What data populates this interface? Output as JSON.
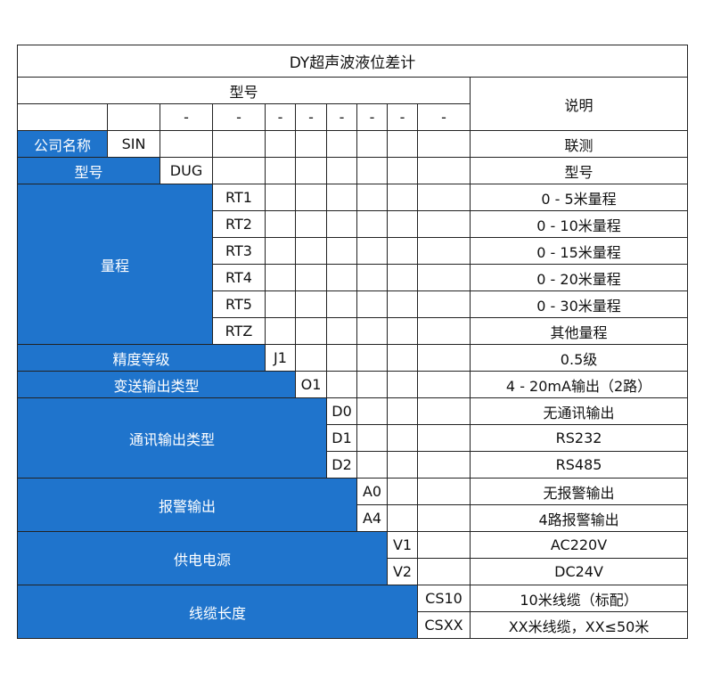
{
  "title": "DY超声波液位差计",
  "header": {
    "model_label": "型号",
    "desc_label": "说明",
    "dashes": [
      "",
      "",
      "-",
      "-",
      "-",
      "-",
      "-",
      "-",
      "-",
      "-"
    ]
  },
  "colors": {
    "label_bg": "#1f74cc",
    "label_text": "#ffffff",
    "border": "#222222"
  },
  "groups": [
    {
      "label": "公司名称",
      "span": 1,
      "rows": [
        {
          "code": "SIN",
          "desc": "联测"
        }
      ]
    },
    {
      "label": "型号",
      "span": 2,
      "rows": [
        {
          "code": "DUG",
          "desc": "型号"
        }
      ]
    },
    {
      "label": "量程",
      "span": 3,
      "rows": [
        {
          "code": "RT1",
          "desc": "0 - 5米量程"
        },
        {
          "code": "RT2",
          "desc": "0 - 10米量程"
        },
        {
          "code": "RT3",
          "desc": "0 - 15米量程"
        },
        {
          "code": "RT4",
          "desc": "0 - 20米量程"
        },
        {
          "code": "RT5",
          "desc": "0 - 30米量程"
        },
        {
          "code": "RTZ",
          "desc": "其他量程"
        }
      ]
    },
    {
      "label": "精度等级",
      "span": 4,
      "rows": [
        {
          "code": "J1",
          "desc": "0.5级"
        }
      ]
    },
    {
      "label": "变送输出类型",
      "span": 5,
      "rows": [
        {
          "code": "O1",
          "desc": "4 - 20mA输出（2路）"
        }
      ]
    },
    {
      "label": "通讯输出类型",
      "span": 6,
      "rows": [
        {
          "code": "D0",
          "desc": "无通讯输出"
        },
        {
          "code": "D1",
          "desc": "RS232"
        },
        {
          "code": "D2",
          "desc": "RS485"
        }
      ]
    },
    {
      "label": "报警输出",
      "span": 7,
      "rows": [
        {
          "code": "A0",
          "desc": "无报警输出"
        },
        {
          "code": "A4",
          "desc": "4路报警输出"
        }
      ]
    },
    {
      "label": "供电电源",
      "span": 8,
      "rows": [
        {
          "code": "V1",
          "desc": "AC220V"
        },
        {
          "code": "V2",
          "desc": "DC24V"
        }
      ]
    },
    {
      "label": "线缆长度",
      "span": 9,
      "rows": [
        {
          "code": "CS10",
          "desc": "10米线缆（标配）"
        },
        {
          "code": "CSXX",
          "desc": "XX米线缆，XX≤50米"
        }
      ]
    }
  ]
}
